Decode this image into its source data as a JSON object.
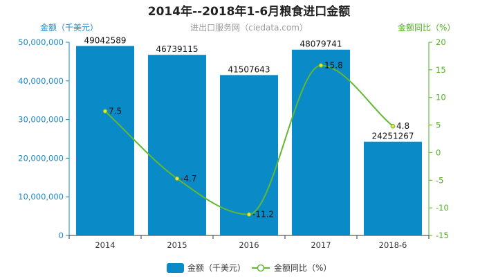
{
  "chart_data": {
    "type": "bar",
    "title": "2014年--2018年1-6月粮食进口金额",
    "subtitle": "进出口服务网（ciedata.com）",
    "categories": [
      "2014",
      "2015",
      "2016",
      "2017",
      "2018-6"
    ],
    "y_left": {
      "label": "金额（千美元）",
      "ticks": [
        "0",
        "10,000,000",
        "20,000,000",
        "30,000,000",
        "40,000,000",
        "50,000,000"
      ],
      "ylim": [
        0,
        50000000
      ]
    },
    "y_right": {
      "label": "金额同比（%）",
      "ticks": [
        "-15",
        "-10",
        "-5",
        "0",
        "5",
        "10",
        "15",
        "20"
      ],
      "ylim": [
        -15,
        20
      ]
    },
    "series": [
      {
        "name": "金额（千美元）",
        "type": "bar",
        "axis": "left",
        "color": "#0a8bc8",
        "values": [
          49042589,
          46739115,
          41507643,
          48079741,
          24251267
        ],
        "labels": [
          "49042589",
          "46739115",
          "41507643",
          "48079741",
          "24251267"
        ]
      },
      {
        "name": "金额同比（%）",
        "type": "line",
        "axis": "right",
        "color": "#61b832",
        "values": [
          7.5,
          -4.7,
          -11.2,
          15.8,
          4.8
        ],
        "labels": [
          "7.5",
          "-4.7",
          "-11.2",
          "15.8",
          "4.8"
        ]
      }
    ],
    "legend_position": "bottom-center",
    "grid": false
  }
}
